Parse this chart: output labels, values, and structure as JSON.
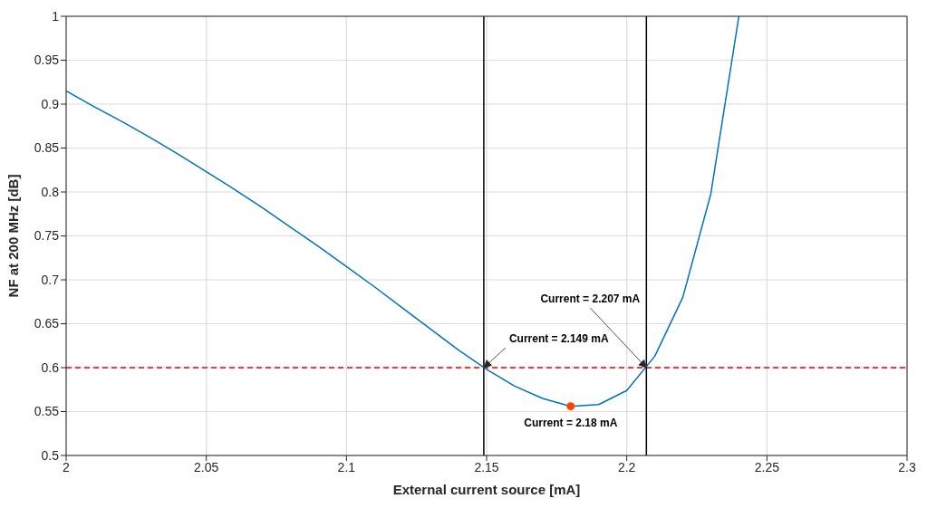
{
  "chart_data": {
    "type": "line",
    "xlabel": "External current source [mA]",
    "ylabel": "NF at 200 MHz [dB]",
    "x": [
      2.0,
      2.01,
      2.02,
      2.03,
      2.04,
      2.05,
      2.06,
      2.07,
      2.08,
      2.09,
      2.1,
      2.11,
      2.12,
      2.13,
      2.14,
      2.15,
      2.16,
      2.17,
      2.18,
      2.19,
      2.2,
      2.21,
      2.22,
      2.23,
      2.24
    ],
    "series": [
      {
        "color": "#0072bd",
        "values": [
          0.915,
          0.897,
          0.88,
          0.862,
          0.843,
          0.823,
          0.803,
          0.782,
          0.76,
          0.738,
          0.715,
          0.692,
          0.668,
          0.644,
          0.62,
          0.598,
          0.579,
          0.565,
          0.556,
          0.558,
          0.574,
          0.613,
          0.68,
          0.798,
          1.0
        ]
      },
      {
        "type": "scatter",
        "color": "#ff4500",
        "x": [
          2.18
        ],
        "values": [
          0.556
        ],
        "marker": "circle"
      }
    ],
    "xlim": [
      2,
      2.3
    ],
    "xticks": [
      2,
      2.05,
      2.1,
      2.15,
      2.2,
      2.25,
      2.3
    ],
    "ylim": [
      0.5,
      1
    ],
    "yticks": [
      0.5,
      0.55,
      0.6,
      0.65,
      0.7,
      0.75,
      0.8,
      0.85,
      0.9,
      0.95,
      1
    ],
    "grid": true,
    "marker": "none",
    "line_style": "solid",
    "ref_lines": [
      {
        "axis": "y",
        "value": 0.6,
        "color": "#ff0000",
        "line_style": "dashed"
      },
      {
        "axis": "x",
        "value": 2.149,
        "color": "#000000",
        "line_style": "solid"
      },
      {
        "axis": "x",
        "value": 2.207,
        "color": "#000000",
        "line_style": "solid"
      }
    ],
    "annotations": [
      {
        "text": "Current = 2.149 mA",
        "x": 2.149,
        "y": 0.6
      },
      {
        "text": "Current = 2.207 mA",
        "x": 2.207,
        "y": 0.6
      },
      {
        "text": "Current = 2.18 mA",
        "x": 2.18,
        "y": 0.556
      }
    ]
  }
}
